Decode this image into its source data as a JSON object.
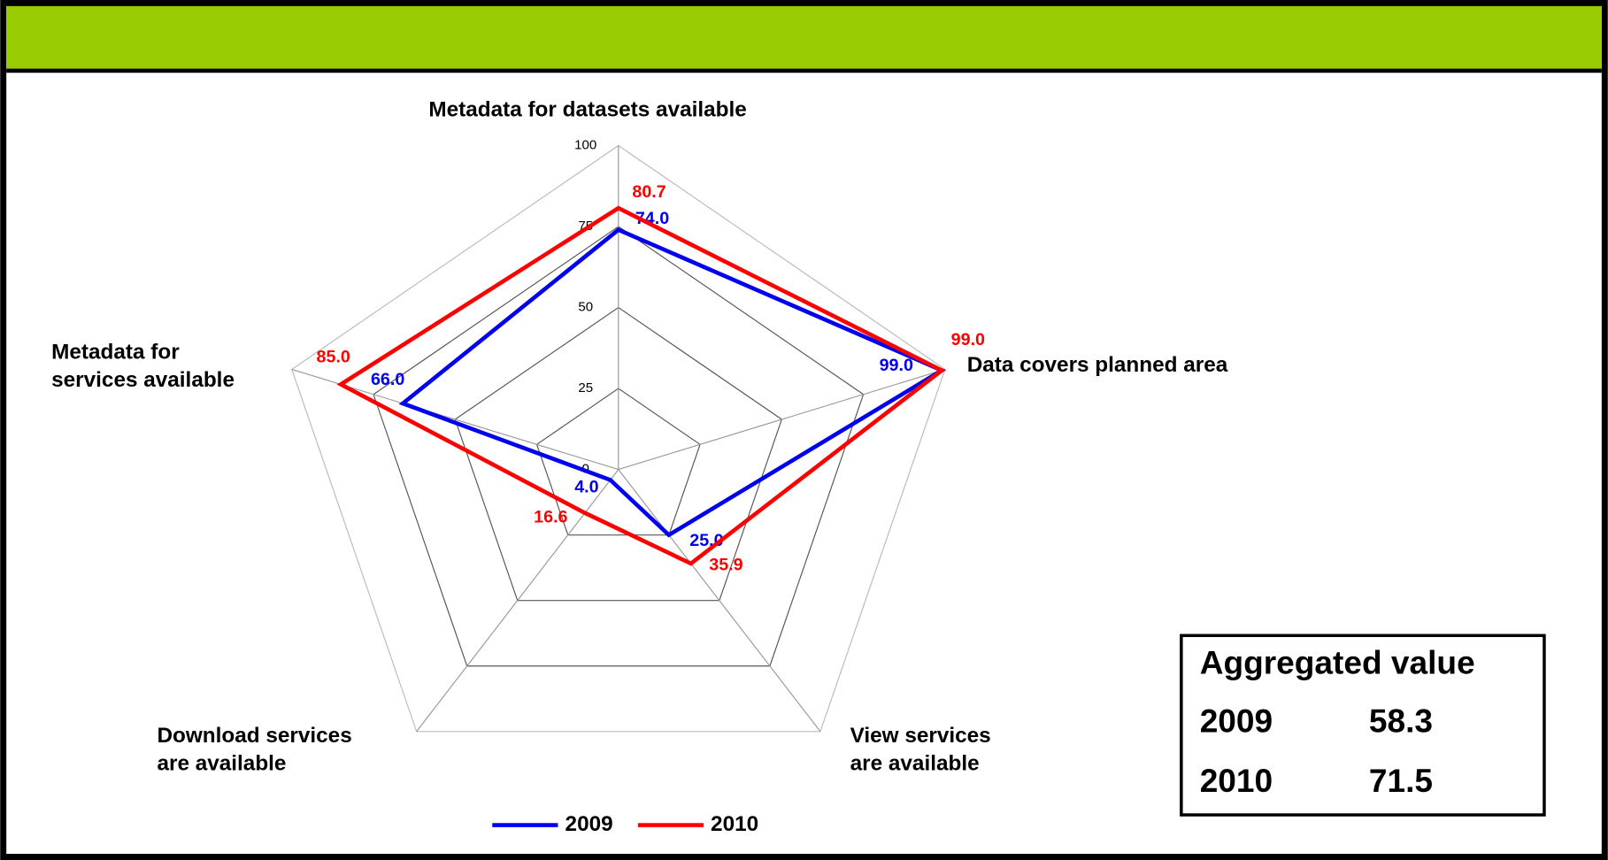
{
  "chart_data": {
    "type": "radar",
    "categories": [
      "Metadata for datasets available",
      "Data covers planned area",
      "View services\nare available",
      "Download services\nare available",
      "Metadata for\nservices available"
    ],
    "series": [
      {
        "name": "2009",
        "color": "#0000ee",
        "values": [
          74,
          99,
          25,
          4,
          66
        ],
        "value_labels": [
          "74.0",
          "99.0",
          "25.0",
          "4.0",
          "66.0"
        ]
      },
      {
        "name": "2010",
        "color": "#ff0000",
        "values": [
          80.7,
          99,
          35.9,
          16.6,
          85
        ],
        "value_labels": [
          "80.7",
          "99.0",
          "35.9",
          "16.6",
          "85.0"
        ]
      }
    ],
    "ylim": [
      0,
      100
    ],
    "yticks": [
      0,
      25,
      50,
      75,
      100
    ],
    "grid": true,
    "legend": "bottom"
  },
  "aggregate": {
    "title": "Aggregated value",
    "rows": [
      [
        "2009",
        "58.3"
      ],
      [
        "2010",
        "71.5"
      ]
    ]
  }
}
